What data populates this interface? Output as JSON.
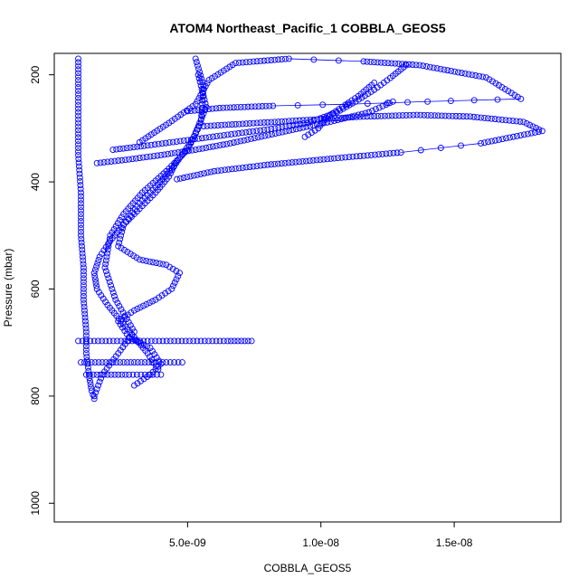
{
  "chart_data": {
    "type": "scatter",
    "title": "ATOM4 Northeast_Pacific_1 COBBLA_GEOS5",
    "xlabel": "COBBLA_GEOS5",
    "ylabel": "Pressure (mbar)",
    "xlim": [
      0,
      1.9e-08
    ],
    "ylim": [
      1035,
      160
    ],
    "y_reversed": true,
    "x_ticks": [
      5e-09,
      1e-08,
      1.5e-08
    ],
    "x_tick_labels": [
      "5.0e-09",
      "1.0e-08",
      "1.5e-08"
    ],
    "y_ticks": [
      200,
      400,
      600,
      800,
      1000
    ],
    "y_tick_labels": [
      "200",
      "400",
      "600",
      "800",
      "1000"
    ],
    "grid": false,
    "marker": "open-circle",
    "color": "#0000ff",
    "series": [
      {
        "x": [
          9e-10,
          9e-10,
          9e-10,
          1e-09,
          1e-09,
          1.1e-09,
          1.1e-09,
          1.2e-09,
          1.2e-09,
          1.3e-09,
          1.4e-09,
          1.5e-09
        ],
        "y": [
          170,
          250,
          350,
          420,
          500,
          560,
          620,
          680,
          720,
          760,
          790,
          805
        ]
      },
      {
        "x": [
          5.3e-09,
          5.6e-09,
          5.5e-09,
          5e-09,
          4.2e-09,
          3.3e-09,
          2.6e-09,
          2.1e-09,
          1.9e-09,
          2.3e-09,
          3e-09,
          2.4e-09,
          1.8e-09,
          1.5e-09
        ],
        "y": [
          170,
          220,
          290,
          340,
          380,
          420,
          460,
          500,
          560,
          620,
          680,
          720,
          760,
          800
        ]
      },
      {
        "x": [
          5.4e-09,
          5.7e-09,
          5.2e-09,
          4.5e-09,
          3.8e-09,
          3.2e-09,
          2.6e-09,
          2.4e-09,
          3.2e-09,
          4.2e-09,
          4.7e-09,
          4.4e-09,
          3.8e-09,
          3e-09,
          2.4e-09,
          2.8e-09,
          3.6e-09,
          4e-09,
          3.6e-09,
          3e-09
        ],
        "y": [
          200,
          260,
          320,
          370,
          410,
          440,
          480,
          520,
          545,
          555,
          570,
          600,
          620,
          640,
          660,
          690,
          710,
          740,
          760,
          780
        ]
      },
      {
        "x": [
          4.6e-09,
          4.3e-09,
          3.8e-09,
          3.2e-09,
          2.6e-09,
          2.1e-09,
          1.7e-09,
          1.5e-09,
          1.6e-09,
          2e-09,
          2.5e-09,
          3e-09,
          3.5e-09,
          3.9e-09
        ],
        "y": [
          360,
          390,
          420,
          450,
          480,
          510,
          540,
          570,
          600,
          630,
          660,
          690,
          720,
          750
        ]
      },
      {
        "x": [
          9e-10,
          1.5e-09,
          2.5e-09,
          3.5e-09,
          4.5e-09,
          5.5e-09,
          6.5e-09,
          7.4e-09
        ],
        "y": [
          697,
          697,
          697,
          697,
          697,
          697,
          697,
          697
        ]
      },
      {
        "x": [
          1e-09,
          1.8e-09,
          2.6e-09,
          3.4e-09,
          4.2e-09,
          4.8e-09
        ],
        "y": [
          737,
          737,
          737,
          737,
          737,
          737
        ]
      },
      {
        "x": [
          1.2e-09,
          2e-09,
          2.8e-09,
          3.4e-09,
          4e-09
        ],
        "y": [
          760,
          760,
          760,
          760,
          760
        ]
      },
      {
        "x": [
          3.2e-09,
          4.3e-09,
          5.3e-09,
          5.8e-09,
          6.8e-09,
          8.8e-09,
          1.16e-08,
          1.37e-08,
          1.62e-08,
          1.75e-08,
          1.4e-08,
          1.1e-08,
          8.2e-09,
          6.2e-09,
          5e-09
        ],
        "y": [
          326,
          290,
          255,
          210,
          178,
          170,
          175,
          182,
          205,
          245,
          250,
          255,
          258,
          262,
          268
        ]
      },
      {
        "x": [
          5.6e-09,
          7.6e-09,
          9.6e-09,
          1.16e-08,
          1.36e-08,
          1.56e-08,
          1.76e-08,
          1.83e-08,
          1.6e-08,
          1.3e-08,
          1.05e-08,
          8e-09,
          6e-09,
          4.6e-09
        ],
        "y": [
          296,
          290,
          284,
          278,
          275,
          278,
          288,
          305,
          328,
          345,
          356,
          368,
          380,
          395
        ]
      },
      {
        "x": [
          2.2e-09,
          3.5e-09,
          5e-09,
          6.5e-09,
          8e-09,
          9.5e-09,
          1.06e-08,
          1.13e-08,
          1.2e-08,
          1.26e-08,
          1.32e-08
        ],
        "y": [
          340,
          332,
          322,
          312,
          302,
          290,
          270,
          250,
          228,
          206,
          182
        ]
      },
      {
        "x": [
          9.4e-09,
          9.9e-09,
          1.02e-08,
          1.08e-08,
          1.14e-08,
          1.2e-08
        ],
        "y": [
          316,
          300,
          280,
          260,
          240,
          215
        ]
      },
      {
        "x": [
          1.6e-09,
          2.8e-09,
          4e-09,
          5.3e-09,
          6.6e-09,
          7.9e-09,
          9.2e-09,
          1.05e-08,
          1.18e-08,
          1.27e-08
        ],
        "y": [
          365,
          358,
          350,
          340,
          328,
          314,
          300,
          286,
          270,
          250
        ]
      }
    ]
  }
}
